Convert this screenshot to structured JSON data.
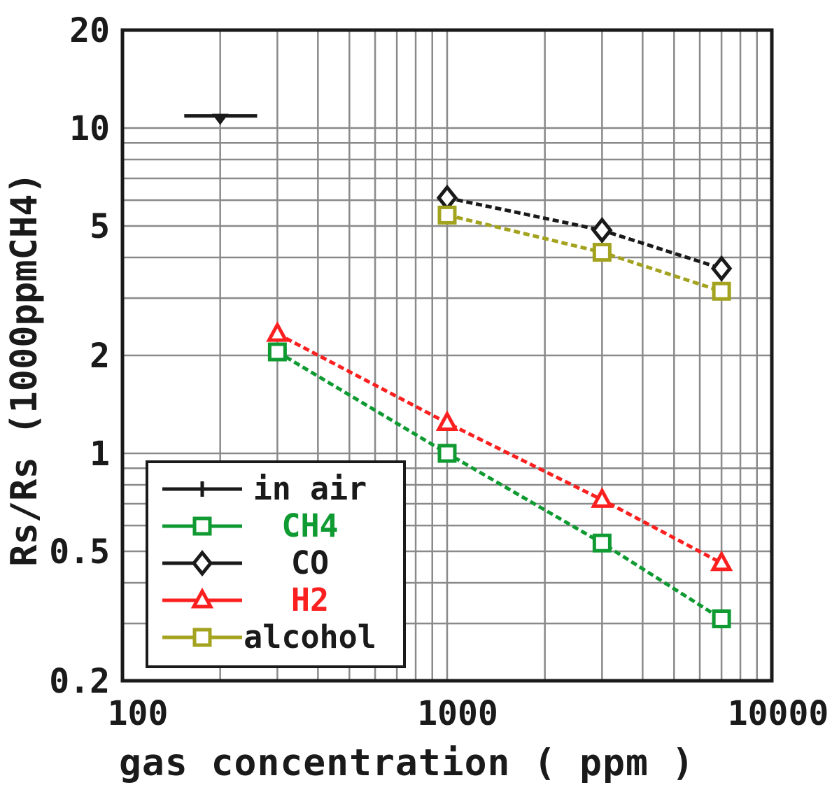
{
  "chart_data": {
    "type": "line",
    "title": "",
    "xlabel": "gas concentration ( ppm )",
    "ylabel": "Rs/Rs (1000ppmCH4)",
    "x_scale": "log",
    "y_scale": "log",
    "xlim": [
      100,
      10000
    ],
    "ylim": [
      0.2,
      20
    ],
    "grid": true,
    "legend_position": "lower-left",
    "colors": {
      "axis": "#1a1a1a",
      "grid": "#8a8a8a",
      "background": "#ffffff",
      "green": "#0f9a32",
      "red": "#fb2020",
      "olive": "#a3a31f",
      "black": "#1a1a1a"
    },
    "x_ticks": [
      {
        "value": 100,
        "label": "100"
      },
      {
        "value": 1000,
        "label": "1000"
      },
      {
        "value": 10000,
        "label": "10000"
      }
    ],
    "y_ticks": [
      {
        "value": 20,
        "label": "20"
      },
      {
        "value": 10,
        "label": "10"
      },
      {
        "value": 5,
        "label": "5"
      },
      {
        "value": 2,
        "label": "2"
      },
      {
        "value": 1,
        "label": "1"
      },
      {
        "value": 0.5,
        "label": "0.5"
      },
      {
        "value": 0.2,
        "label": "0.2"
      }
    ],
    "series": [
      {
        "name": "in air",
        "color": "#1a1a1a",
        "label_color": "#1a1a1a",
        "legend_marker": "plus",
        "chart_marker": "tri_down_filled",
        "line_style": "solid",
        "points": [
          [
            155,
            10.9
          ],
          [
            260,
            10.9
          ]
        ],
        "marker_points": [
          [
            200,
            10.9
          ]
        ]
      },
      {
        "name": "CH4",
        "color": "#0f9a32",
        "label_color": "#0f9a32",
        "legend_marker": "square",
        "chart_marker": "square",
        "line_style": "dashed",
        "points": [
          [
            300,
            2.05
          ],
          [
            1000,
            1.0
          ],
          [
            3000,
            0.53
          ],
          [
            7000,
            0.31
          ]
        ]
      },
      {
        "name": "CO",
        "color": "#1a1a1a",
        "label_color": "#1a1a1a",
        "legend_marker": "diamond",
        "chart_marker": "diamond",
        "line_style": "dashed",
        "points": [
          [
            1000,
            6.1
          ],
          [
            3000,
            4.85
          ],
          [
            7000,
            3.7
          ]
        ]
      },
      {
        "name": "H2",
        "color": "#fb2020",
        "label_color": "#fb2020",
        "legend_marker": "triangle",
        "chart_marker": "triangle",
        "line_style": "dashed",
        "points": [
          [
            300,
            2.33
          ],
          [
            1000,
            1.24
          ],
          [
            3000,
            0.72
          ],
          [
            7000,
            0.46
          ]
        ]
      },
      {
        "name": "alcohol",
        "color": "#a3a31f",
        "label_color": "#1a1a1a",
        "legend_marker": "square",
        "chart_marker": "square",
        "line_style": "dashed",
        "points": [
          [
            1000,
            5.4
          ],
          [
            3000,
            4.15
          ],
          [
            7000,
            3.15
          ]
        ]
      }
    ]
  }
}
